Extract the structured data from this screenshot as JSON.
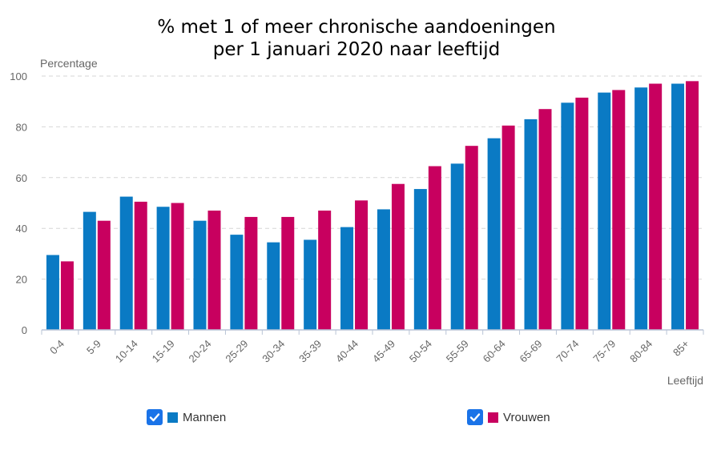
{
  "chart_data": {
    "type": "bar",
    "title_line1": "% met 1 of meer chronische aandoeningen",
    "title_line2": "per 1 januari 2020 naar leeftijd",
    "ylabel": "Percentage",
    "xlabel": "Leeftijd",
    "ylim": [
      0,
      100
    ],
    "yticks": [
      0,
      20,
      40,
      60,
      80,
      100
    ],
    "grid": true,
    "legend_position": "bottom",
    "categories": [
      "0-4",
      "5-9",
      "10-14",
      "15-19",
      "20-24",
      "25-29",
      "30-34",
      "35-39",
      "40-44",
      "45-49",
      "50-54",
      "55-59",
      "60-64",
      "65-69",
      "70-74",
      "75-79",
      "80-84",
      "85+"
    ],
    "series": [
      {
        "name": "Mannen",
        "color": "#0a7ac4",
        "values": [
          29.5,
          46.5,
          52.5,
          48.5,
          43,
          37.5,
          34.5,
          35.5,
          40.5,
          47.5,
          55.5,
          65.5,
          75.5,
          83,
          89.5,
          93.5,
          95.5,
          97
        ]
      },
      {
        "name": "Vrouwen",
        "color": "#c8005f",
        "values": [
          27,
          43,
          50.5,
          50,
          47,
          44.5,
          44.5,
          47,
          51,
          57.5,
          64.5,
          72.5,
          80.5,
          87,
          91.5,
          94.5,
          97,
          98
        ]
      }
    ]
  },
  "legend": {
    "checkbox_color": "#1a73e8"
  }
}
